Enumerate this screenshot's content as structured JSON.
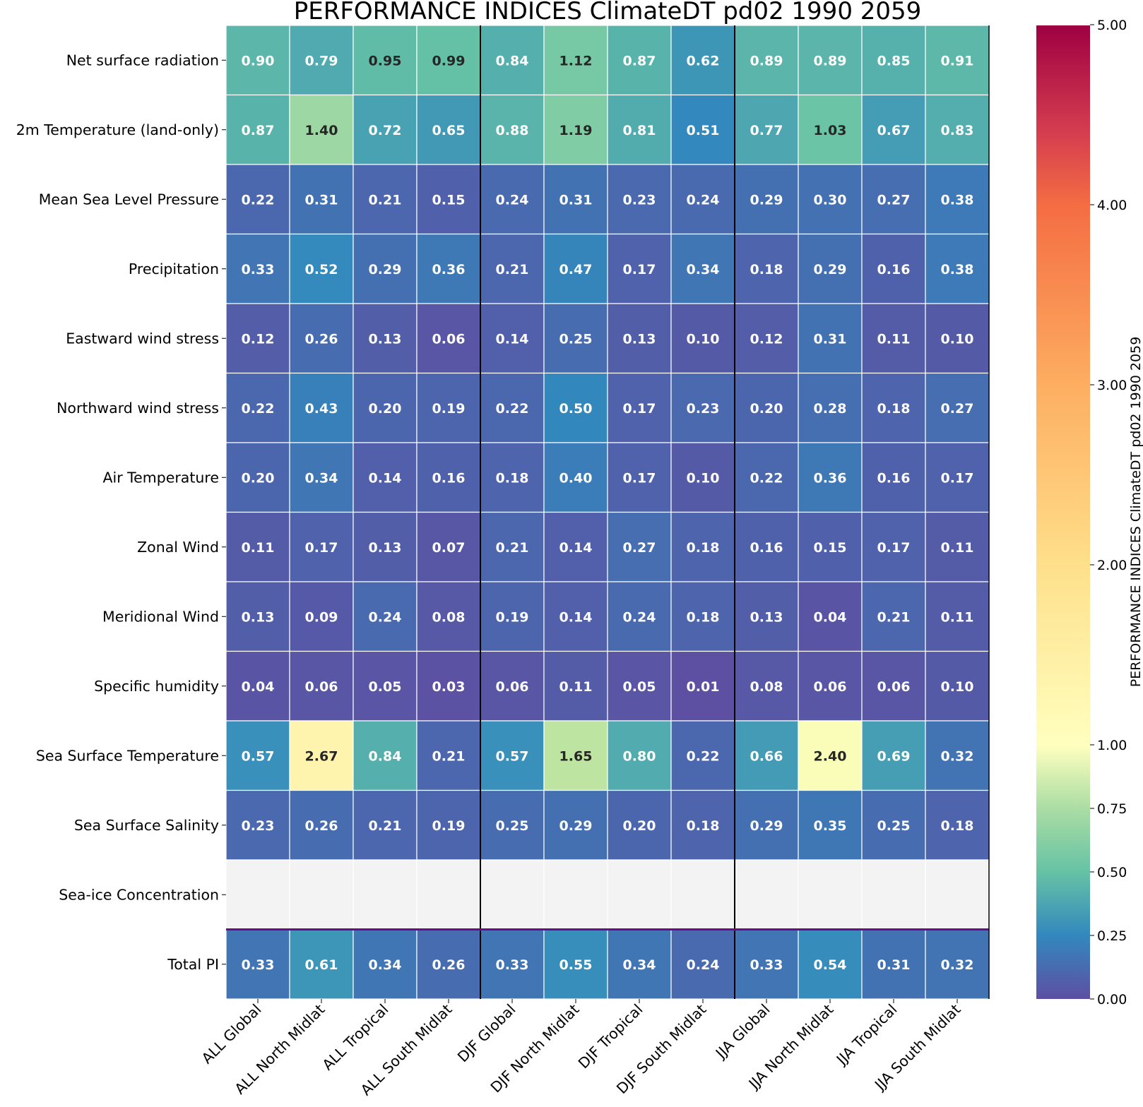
{
  "chart_data": {
    "type": "heatmap",
    "title": "PERFORMANCE INDICES ClimateDT pd02 1990 2059",
    "rows": [
      "Net surface radiation",
      "2m Temperature (land-only)",
      "Mean Sea Level Pressure",
      "Precipitation",
      "Eastward wind stress",
      "Northward wind stress",
      "Air Temperature",
      "Zonal Wind",
      "Meridional Wind",
      "Specific humidity",
      "Sea Surface Temperature",
      "Sea Surface Salinity",
      "Sea-ice Concentration",
      "Total PI"
    ],
    "columns": [
      "ALL Global",
      "ALL North Midlat",
      "ALL Tropical",
      "ALL South Midlat",
      "DJF Global",
      "DJF North Midlat",
      "DJF Tropical",
      "DJF South Midlat",
      "JJA Global",
      "JJA North Midlat",
      "JJA Tropical",
      "JJA South Midlat"
    ],
    "values": [
      [
        "0.90",
        "0.79",
        "0.95",
        "0.99",
        "0.84",
        "1.12",
        "0.87",
        "0.62",
        "0.89",
        "0.89",
        "0.85",
        "0.91"
      ],
      [
        "0.87",
        "1.40",
        "0.72",
        "0.65",
        "0.88",
        "1.19",
        "0.81",
        "0.51",
        "0.77",
        "1.03",
        "0.67",
        "0.83"
      ],
      [
        "0.22",
        "0.31",
        "0.21",
        "0.15",
        "0.24",
        "0.31",
        "0.23",
        "0.24",
        "0.29",
        "0.30",
        "0.27",
        "0.38"
      ],
      [
        "0.33",
        "0.52",
        "0.29",
        "0.36",
        "0.21",
        "0.47",
        "0.17",
        "0.34",
        "0.18",
        "0.29",
        "0.16",
        "0.38"
      ],
      [
        "0.12",
        "0.26",
        "0.13",
        "0.06",
        "0.14",
        "0.25",
        "0.13",
        "0.10",
        "0.12",
        "0.31",
        "0.11",
        "0.10"
      ],
      [
        "0.22",
        "0.43",
        "0.20",
        "0.19",
        "0.22",
        "0.50",
        "0.17",
        "0.23",
        "0.20",
        "0.28",
        "0.18",
        "0.27"
      ],
      [
        "0.20",
        "0.34",
        "0.14",
        "0.16",
        "0.18",
        "0.40",
        "0.17",
        "0.10",
        "0.22",
        "0.36",
        "0.16",
        "0.17"
      ],
      [
        "0.11",
        "0.17",
        "0.13",
        "0.07",
        "0.21",
        "0.14",
        "0.27",
        "0.18",
        "0.16",
        "0.15",
        "0.17",
        "0.11"
      ],
      [
        "0.13",
        "0.09",
        "0.24",
        "0.08",
        "0.19",
        "0.14",
        "0.24",
        "0.18",
        "0.13",
        "0.04",
        "0.21",
        "0.11"
      ],
      [
        "0.04",
        "0.06",
        "0.05",
        "0.03",
        "0.06",
        "0.11",
        "0.05",
        "0.01",
        "0.08",
        "0.06",
        "0.06",
        "0.10"
      ],
      [
        "0.57",
        "2.67",
        "0.84",
        "0.21",
        "0.57",
        "1.65",
        "0.80",
        "0.22",
        "0.66",
        "2.40",
        "0.69",
        "0.32"
      ],
      [
        "0.23",
        "0.26",
        "0.21",
        "0.19",
        "0.25",
        "0.29",
        "0.20",
        "0.18",
        "0.29",
        "0.35",
        "0.25",
        "0.18"
      ],
      [
        null,
        null,
        null,
        null,
        null,
        null,
        null,
        null,
        null,
        null,
        null,
        null
      ],
      [
        "0.33",
        "0.61",
        "0.34",
        "0.26",
        "0.33",
        "0.55",
        "0.34",
        "0.24",
        "0.33",
        "0.54",
        "0.31",
        "0.32"
      ]
    ],
    "missing_color": "#f3f3f3",
    "season_separators_after_columns": [
      4,
      8
    ],
    "total_separator_color": "#6a0d83",
    "colorbar": {
      "label": "PERFORMANCE INDICES ClimateDT pd02 1990 2059",
      "ticks": [
        "0.00",
        "0.25",
        "0.50",
        "0.75",
        "1.00",
        "2.00",
        "3.00",
        "4.00",
        "5.00"
      ],
      "tick_values": [
        0,
        0.25,
        0.5,
        0.75,
        1,
        2,
        3,
        4,
        5
      ],
      "colormap": "Spectral_r",
      "stops": [
        "#5e4fa2",
        "#3288bd",
        "#66c2a5",
        "#abdda4",
        "#e6f598",
        "#ffffbf",
        "#fee08b",
        "#fdae61",
        "#f46d43",
        "#d53e4f",
        "#9e0142"
      ]
    }
  }
}
